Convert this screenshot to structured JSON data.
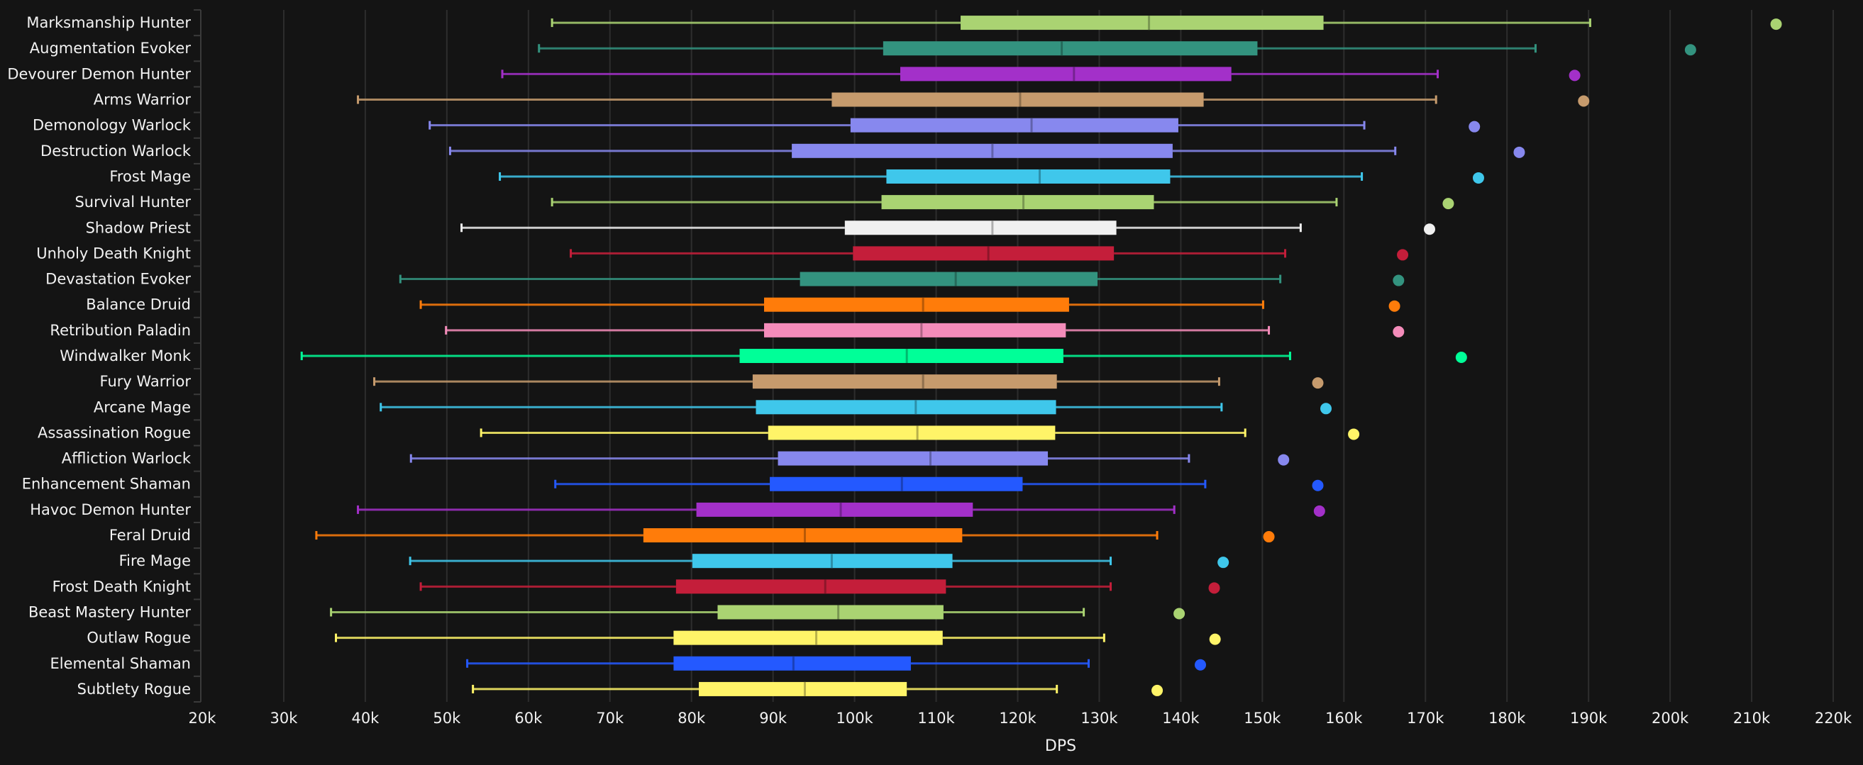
{
  "chart_data": {
    "type": "boxplot",
    "title": "",
    "xlabel": "DPS",
    "ylabel": "",
    "xlim": [
      20000,
      220000
    ],
    "x_ticks": [
      20000,
      30000,
      40000,
      50000,
      60000,
      70000,
      80000,
      90000,
      100000,
      110000,
      120000,
      130000,
      140000,
      150000,
      160000,
      170000,
      180000,
      190000,
      200000,
      210000,
      220000
    ],
    "x_tick_labels": [
      "20k",
      "30k",
      "40k",
      "50k",
      "60k",
      "70k",
      "80k",
      "90k",
      "100k",
      "110k",
      "120k",
      "130k",
      "140k",
      "150k",
      "160k",
      "170k",
      "180k",
      "190k",
      "200k",
      "210k",
      "220k"
    ],
    "grid": true,
    "legend": "none",
    "series": [
      {
        "name": "Marksmanship Hunter",
        "color": "#aad372",
        "min": 62900,
        "q1": 113000,
        "median": 136100,
        "q3": 157500,
        "max": 190200,
        "outlier": 213000
      },
      {
        "name": "Augmentation Evoker",
        "color": "#33937f",
        "min": 61300,
        "q1": 103500,
        "median": 125400,
        "q3": 149400,
        "max": 183500,
        "outlier": 202500
      },
      {
        "name": "Devourer Demon Hunter",
        "color": "#a330c9",
        "min": 56800,
        "q1": 105600,
        "median": 126900,
        "q3": 146200,
        "max": 171500,
        "outlier": 188300
      },
      {
        "name": "Arms Warrior",
        "color": "#c69b6d",
        "min": 39100,
        "q1": 97200,
        "median": 120300,
        "q3": 142800,
        "max": 171300,
        "outlier": 189400
      },
      {
        "name": "Demonology Warlock",
        "color": "#8788ee",
        "min": 47900,
        "q1": 99500,
        "median": 121700,
        "q3": 139700,
        "max": 162500,
        "outlier": 176000
      },
      {
        "name": "Destruction Warlock",
        "color": "#8788ee",
        "min": 50400,
        "q1": 92300,
        "median": 116900,
        "q3": 139000,
        "max": 166300,
        "outlier": 181500
      },
      {
        "name": "Frost Mage",
        "color": "#3fc7eb",
        "min": 56500,
        "q1": 103900,
        "median": 122700,
        "q3": 138700,
        "max": 162200,
        "outlier": 176500
      },
      {
        "name": "Survival Hunter",
        "color": "#aad372",
        "min": 62900,
        "q1": 103300,
        "median": 120700,
        "q3": 136700,
        "max": 159100,
        "outlier": 172800
      },
      {
        "name": "Shadow Priest",
        "color": "#f0f0f0",
        "min": 51800,
        "q1": 98800,
        "median": 116900,
        "q3": 132100,
        "max": 154700,
        "outlier": 170500
      },
      {
        "name": "Unholy Death Knight",
        "color": "#c41e3a",
        "min": 65200,
        "q1": 99800,
        "median": 116400,
        "q3": 131800,
        "max": 152800,
        "outlier": 167200
      },
      {
        "name": "Devastation Evoker",
        "color": "#33937f",
        "min": 44300,
        "q1": 93300,
        "median": 112400,
        "q3": 129800,
        "max": 152200,
        "outlier": 166700
      },
      {
        "name": "Balance Druid",
        "color": "#ff7c0a",
        "min": 46800,
        "q1": 88900,
        "median": 108400,
        "q3": 126300,
        "max": 150100,
        "outlier": 166200
      },
      {
        "name": "Retribution Paladin",
        "color": "#f48cba",
        "min": 49900,
        "q1": 88900,
        "median": 108200,
        "q3": 125900,
        "max": 150800,
        "outlier": 166700
      },
      {
        "name": "Windwalker Monk",
        "color": "#00ff98",
        "min": 32200,
        "q1": 85900,
        "median": 106400,
        "q3": 125600,
        "max": 153400,
        "outlier": 174400
      },
      {
        "name": "Fury Warrior",
        "color": "#c69b6d",
        "min": 41100,
        "q1": 87500,
        "median": 108400,
        "q3": 124800,
        "max": 144700,
        "outlier": 156800
      },
      {
        "name": "Arcane Mage",
        "color": "#3fc7eb",
        "min": 41900,
        "q1": 87900,
        "median": 107500,
        "q3": 124700,
        "max": 145000,
        "outlier": 157800
      },
      {
        "name": "Assassination Rogue",
        "color": "#fff468",
        "min": 54200,
        "q1": 89400,
        "median": 107700,
        "q3": 124600,
        "max": 147900,
        "outlier": 161200
      },
      {
        "name": "Affliction Warlock",
        "color": "#8788ee",
        "min": 45600,
        "q1": 90600,
        "median": 109300,
        "q3": 123700,
        "max": 141000,
        "outlier": 152600
      },
      {
        "name": "Enhancement Shaman",
        "color": "#2459ff",
        "min": 63300,
        "q1": 89600,
        "median": 105800,
        "q3": 120600,
        "max": 143000,
        "outlier": 156800
      },
      {
        "name": "Havoc Demon Hunter",
        "color": "#a330c9",
        "min": 39100,
        "q1": 80600,
        "median": 98300,
        "q3": 114500,
        "max": 139200,
        "outlier": 157000
      },
      {
        "name": "Feral Druid",
        "color": "#ff7c0a",
        "min": 34000,
        "q1": 74100,
        "median": 93900,
        "q3": 113200,
        "max": 137100,
        "outlier": 150800
      },
      {
        "name": "Fire Mage",
        "color": "#3fc7eb",
        "min": 45500,
        "q1": 80100,
        "median": 97200,
        "q3": 112000,
        "max": 131400,
        "outlier": 145200
      },
      {
        "name": "Frost Death Knight",
        "color": "#c41e3a",
        "min": 46800,
        "q1": 78100,
        "median": 96400,
        "q3": 111200,
        "max": 131400,
        "outlier": 144100
      },
      {
        "name": "Beast Mastery Hunter",
        "color": "#aad372",
        "min": 35800,
        "q1": 83200,
        "median": 98000,
        "q3": 110900,
        "max": 128100,
        "outlier": 139800
      },
      {
        "name": "Outlaw Rogue",
        "color": "#fff468",
        "min": 36400,
        "q1": 77800,
        "median": 95300,
        "q3": 110800,
        "max": 130600,
        "outlier": 144200
      },
      {
        "name": "Elemental Shaman",
        "color": "#2459ff",
        "min": 52500,
        "q1": 77800,
        "median": 92500,
        "q3": 106900,
        "max": 128700,
        "outlier": 142400
      },
      {
        "name": "Subtlety Rogue",
        "color": "#fff468",
        "min": 53200,
        "q1": 80900,
        "median": 93900,
        "q3": 106400,
        "max": 124800,
        "outlier": 137100
      }
    ]
  }
}
